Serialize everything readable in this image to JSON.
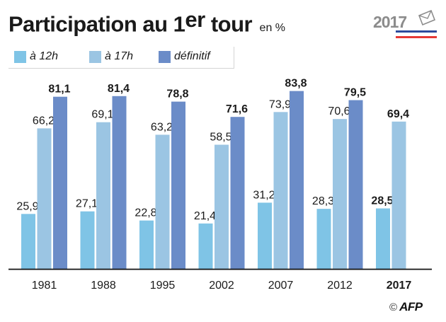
{
  "header": {
    "title_main": "Participation au 1",
    "title_sup": "er",
    "title_end": " tour",
    "unit": "en %"
  },
  "logo": {
    "year": "2017",
    "icon": "ballot-envelope-icon",
    "stripe_colors": [
      "#2d4a9b",
      "#ffffff",
      "#e53935"
    ]
  },
  "legend": {
    "items": [
      {
        "label": "à 12h",
        "color": "#7fc4e6"
      },
      {
        "label": "à 17h",
        "color": "#9bc5e3"
      },
      {
        "label": "définitif",
        "color": "#6b8cc8"
      }
    ]
  },
  "chart_data": {
    "type": "bar",
    "categories": [
      "1981",
      "1988",
      "1995",
      "2002",
      "2007",
      "2012",
      "2017"
    ],
    "highlight_category": "2017",
    "series": [
      {
        "name": "à 12h",
        "values": [
          25.9,
          27.1,
          22.8,
          21.4,
          31.2,
          28.3,
          28.5
        ],
        "labels": [
          "25,9",
          "27,1",
          "22,8",
          "21,4",
          "31,2",
          "28,3",
          "28,5"
        ]
      },
      {
        "name": "à 17h",
        "values": [
          66.2,
          69.1,
          63.2,
          58.5,
          73.9,
          70.6,
          69.4
        ],
        "labels": [
          "66,2",
          "69,1",
          "63,2",
          "58,5",
          "73,9",
          "70,6",
          "69,4"
        ]
      },
      {
        "name": "définitif",
        "values": [
          81.1,
          81.4,
          78.8,
          71.6,
          83.8,
          79.5,
          null
        ],
        "labels": [
          "81,1",
          "81,4",
          "78,8",
          "71,6",
          "83,8",
          "79,5",
          ""
        ]
      }
    ],
    "colors": [
      "#7fc4e6",
      "#9bc5e3",
      "#6b8cc8"
    ],
    "ylim": [
      0,
      100
    ],
    "grid": false,
    "legend_position": "top-left",
    "xlabel": "",
    "ylabel": ""
  },
  "footer": {
    "copyright": "©",
    "agency": "AFP"
  }
}
